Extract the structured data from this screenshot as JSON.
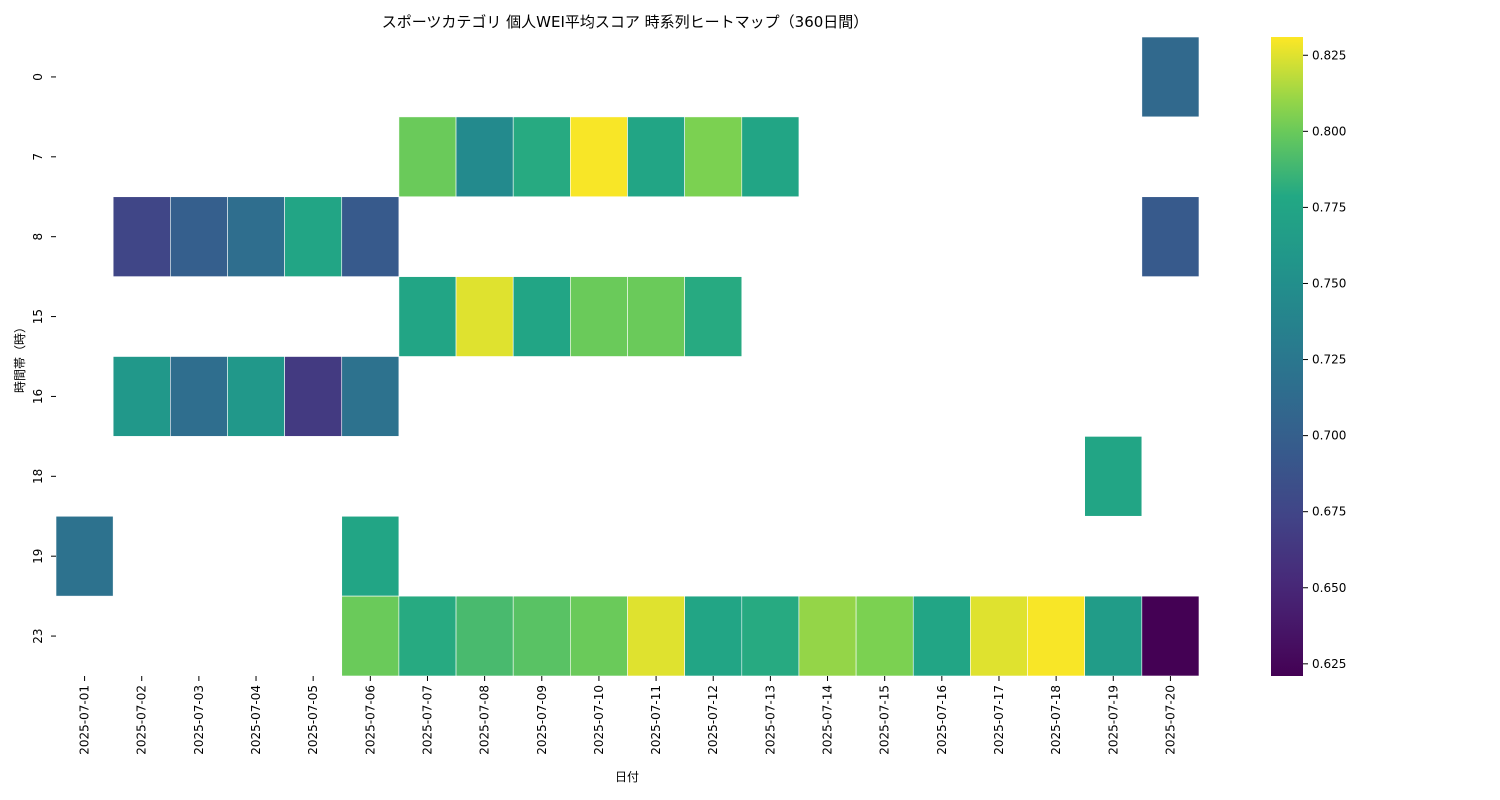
{
  "chart_data": {
    "type": "heatmap",
    "title": "スポーツカテゴリ 個人WEI平均スコア 時系列ヒートマップ（360日間）",
    "xlabel": "日付",
    "ylabel": "時間帯（時）",
    "x_categories": [
      "2025-07-01",
      "2025-07-02",
      "2025-07-03",
      "2025-07-04",
      "2025-07-05",
      "2025-07-06",
      "2025-07-07",
      "2025-07-08",
      "2025-07-09",
      "2025-07-10",
      "2025-07-11",
      "2025-07-12",
      "2025-07-13",
      "2025-07-14",
      "2025-07-15",
      "2025-07-16",
      "2025-07-17",
      "2025-07-18",
      "2025-07-19",
      "2025-07-20"
    ],
    "y_categories": [
      "0",
      "7",
      "8",
      "15",
      "16",
      "18",
      "19",
      "23"
    ],
    "colorbar": {
      "colormap": "viridis",
      "min": 0.621,
      "max": 0.831,
      "ticks": [
        "0.625",
        "0.650",
        "0.675",
        "0.700",
        "0.725",
        "0.750",
        "0.775",
        "0.800",
        "0.825"
      ]
    },
    "values": [
      [
        null,
        null,
        null,
        null,
        null,
        null,
        null,
        null,
        null,
        null,
        null,
        null,
        null,
        null,
        null,
        null,
        null,
        null,
        null,
        0.71
      ],
      [
        null,
        null,
        null,
        null,
        null,
        null,
        0.8,
        0.745,
        0.78,
        0.83,
        0.775,
        0.805,
        0.775,
        null,
        null,
        null,
        null,
        null,
        null,
        null
      ],
      [
        null,
        0.675,
        0.7,
        0.715,
        0.775,
        0.695,
        null,
        null,
        null,
        null,
        null,
        null,
        null,
        null,
        null,
        null,
        null,
        null,
        null,
        0.695
      ],
      [
        null,
        null,
        null,
        null,
        null,
        null,
        0.775,
        0.825,
        0.775,
        0.8,
        0.8,
        0.78,
        null,
        null,
        null,
        null,
        null,
        null,
        null,
        null
      ],
      [
        null,
        0.76,
        0.715,
        0.76,
        0.665,
        0.72,
        null,
        null,
        null,
        null,
        null,
        null,
        null,
        null,
        null,
        null,
        null,
        null,
        null,
        null
      ],
      [
        null,
        null,
        null,
        null,
        null,
        null,
        null,
        null,
        null,
        null,
        null,
        null,
        null,
        null,
        null,
        null,
        null,
        null,
        0.775,
        null
      ],
      [
        0.72,
        null,
        null,
        null,
        null,
        0.775,
        null,
        null,
        null,
        null,
        null,
        null,
        null,
        null,
        null,
        null,
        null,
        null,
        null,
        null
      ],
      [
        null,
        null,
        null,
        null,
        null,
        0.8,
        0.78,
        0.79,
        0.795,
        0.8,
        0.825,
        0.775,
        0.78,
        0.81,
        0.805,
        0.775,
        0.825,
        0.83,
        0.765,
        0.621
      ]
    ]
  }
}
